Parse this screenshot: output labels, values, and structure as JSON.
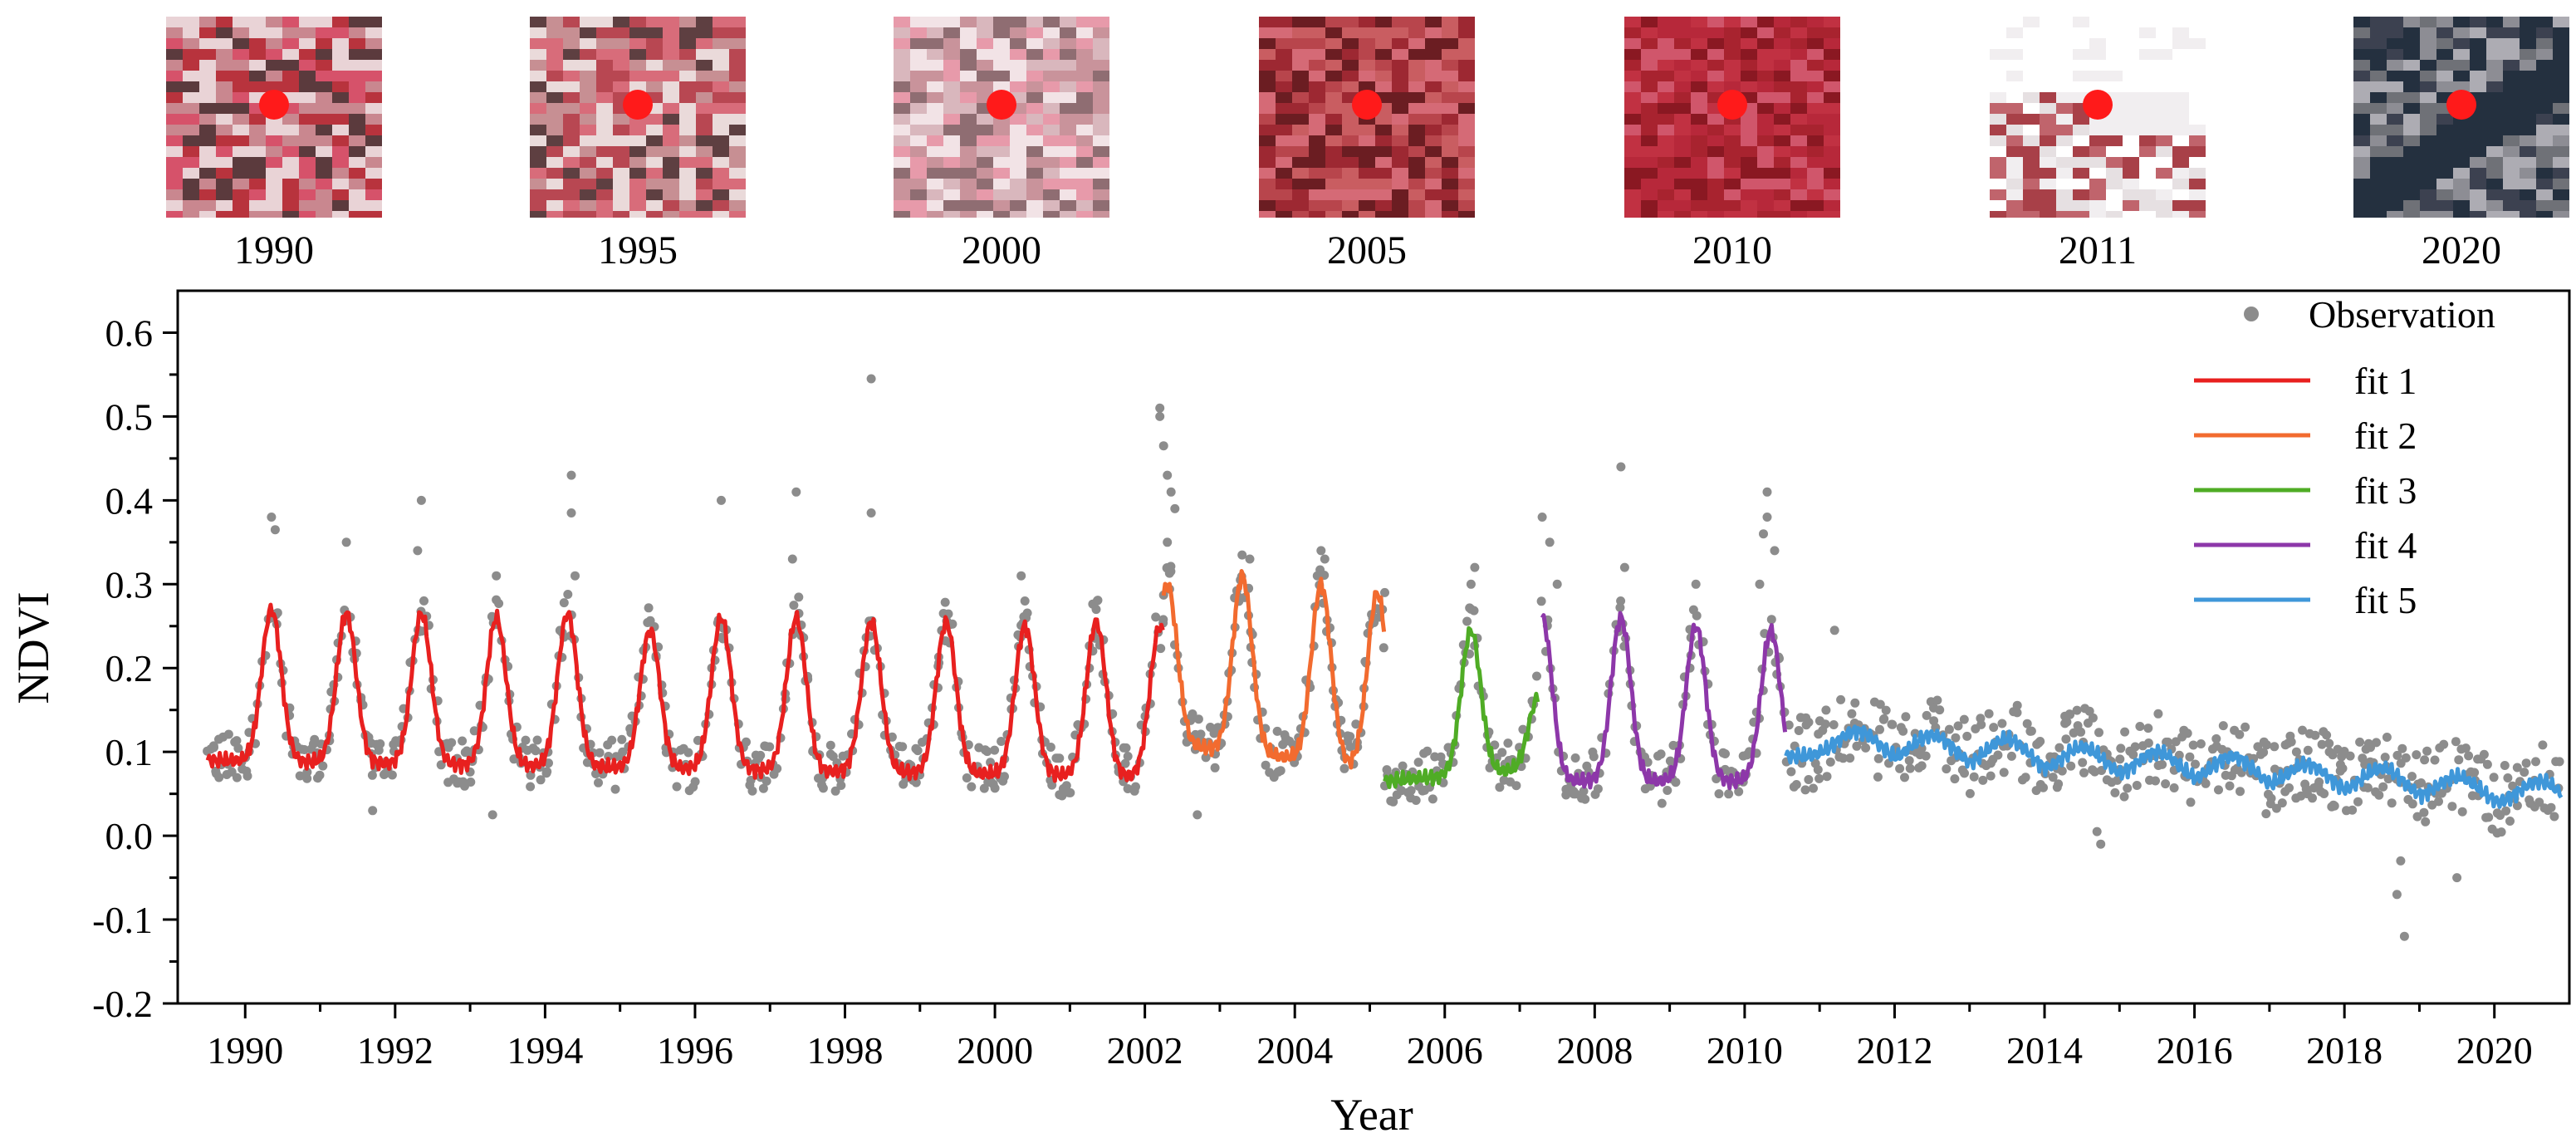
{
  "thumbnails": [
    {
      "year": "1990",
      "palette": [
        "#c9878f",
        "#b8333d",
        "#e9d3d6",
        "#5b3a3d",
        "#d6526a"
      ]
    },
    {
      "year": "1995",
      "palette": [
        "#c78f93",
        "#b84752",
        "#eadada",
        "#5e3f41",
        "#d86c7a"
      ]
    },
    {
      "year": "2000",
      "palette": [
        "#d9b7bd",
        "#c9939b",
        "#f2e3e6",
        "#8f6d72",
        "#e79aaa"
      ]
    },
    {
      "year": "2005",
      "palette": [
        "#9d2832",
        "#b8454c",
        "#d56a76",
        "#6b1d22",
        "#c95d61"
      ]
    },
    {
      "year": "2010",
      "palette": [
        "#a8232f",
        "#c13142",
        "#8a1822",
        "#d0566b",
        "#b7283a"
      ]
    },
    {
      "year": "2011",
      "palette": [
        "#ffffff",
        "#f1eef0",
        "#a84048",
        "#c0646c",
        "#e6e0e2"
      ]
    },
    {
      "year": "2020",
      "palette": [
        "#6f7177",
        "#8d8d94",
        "#3c4150",
        "#adacb3",
        "#24303f"
      ]
    }
  ],
  "marker_color": "#ff1a1a",
  "chart_data": {
    "type": "scatter",
    "title": "",
    "xlabel": "Year",
    "ylabel": "NDVI",
    "xlim": [
      1989.1,
      2021.0
    ],
    "ylim": [
      -0.2,
      0.65
    ],
    "xticks": [
      1990,
      1992,
      1994,
      1996,
      1998,
      2000,
      2002,
      2004,
      2006,
      2008,
      2010,
      2012,
      2014,
      2016,
      2018,
      2020
    ],
    "xtick_labels": [
      "1990",
      "1992",
      "1994",
      "1996",
      "1998",
      "2000",
      "2002",
      "2004",
      "2006",
      "2008",
      "2010",
      "2012",
      "2014",
      "2016",
      "2018",
      "2020"
    ],
    "yticks": [
      -0.2,
      -0.1,
      0.0,
      0.1,
      0.2,
      0.3,
      0.4,
      0.5,
      0.6
    ],
    "ytick_labels": [
      "-0.2",
      "-0.1",
      "0.0",
      "0.1",
      "0.2",
      "0.3",
      "0.4",
      "0.5",
      "0.6"
    ],
    "legend_position": "top-right",
    "observation": {
      "name": "Observation",
      "color": "#8c8c8c",
      "outliers": [
        [
          1990.35,
          0.38
        ],
        [
          1990.4,
          0.365
        ],
        [
          1991.35,
          0.35
        ],
        [
          1992.35,
          0.4
        ],
        [
          1992.3,
          0.34
        ],
        [
          1993.35,
          0.31
        ],
        [
          1994.35,
          0.43
        ],
        [
          1994.35,
          0.385
        ],
        [
          1994.4,
          0.31
        ],
        [
          1996.35,
          0.4
        ],
        [
          1997.35,
          0.41
        ],
        [
          1997.3,
          0.33
        ],
        [
          1998.35,
          0.545
        ],
        [
          1998.35,
          0.385
        ],
        [
          2000.35,
          0.31
        ],
        [
          2000.4,
          0.28
        ],
        [
          2001.35,
          0.27
        ],
        [
          2002.2,
          0.51
        ],
        [
          2002.2,
          0.5
        ],
        [
          2002.25,
          0.465
        ],
        [
          2002.3,
          0.43
        ],
        [
          2002.35,
          0.41
        ],
        [
          2002.4,
          0.39
        ],
        [
          2002.3,
          0.35
        ],
        [
          2003.4,
          0.33
        ],
        [
          2004.35,
          0.34
        ],
        [
          2004.4,
          0.33
        ],
        [
          2004.3,
          0.31
        ],
        [
          2005.2,
          0.29
        ],
        [
          2006.4,
          0.32
        ],
        [
          2006.35,
          0.3
        ],
        [
          2007.3,
          0.38
        ],
        [
          2007.4,
          0.35
        ],
        [
          2007.5,
          0.3
        ],
        [
          2008.35,
          0.44
        ],
        [
          2008.4,
          0.32
        ],
        [
          2009.35,
          0.3
        ],
        [
          2010.3,
          0.41
        ],
        [
          2010.3,
          0.38
        ],
        [
          2010.25,
          0.36
        ],
        [
          2010.4,
          0.34
        ],
        [
          2010.2,
          0.3
        ],
        [
          2011.2,
          0.245
        ],
        [
          2002.7,
          0.025
        ],
        [
          1993.3,
          0.025
        ],
        [
          1991.7,
          0.03
        ],
        [
          2018.7,
          -0.07
        ],
        [
          2018.8,
          -0.12
        ],
        [
          2018.75,
          -0.03
        ],
        [
          2019.5,
          -0.05
        ],
        [
          2014.75,
          -0.01
        ],
        [
          2014.7,
          0.005
        ]
      ]
    },
    "series": [
      {
        "name": "fit 1",
        "color": "#e8201f",
        "x_start": 1989.5,
        "x_end": 2002.25,
        "peaks": [
          [
            1990.35,
            0.27
          ],
          [
            1991.35,
            0.265
          ],
          [
            1992.35,
            0.265
          ],
          [
            1993.35,
            0.26
          ],
          [
            1994.3,
            0.265
          ],
          [
            1995.4,
            0.245
          ],
          [
            1996.35,
            0.26
          ],
          [
            1997.35,
            0.26
          ],
          [
            1998.35,
            0.255
          ],
          [
            1999.35,
            0.255
          ],
          [
            2000.4,
            0.25
          ],
          [
            2001.35,
            0.255
          ],
          [
            2002.2,
            0.25
          ]
        ],
        "base_start": 0.09,
        "base_end": 0.07
      },
      {
        "name": "fit 2",
        "color": "#f26b2f",
        "x_start": 2002.25,
        "x_end": 2005.2,
        "peaks": [
          [
            2002.3,
            0.3
          ],
          [
            2003.3,
            0.31
          ],
          [
            2004.35,
            0.3
          ],
          [
            2005.1,
            0.29
          ]
        ],
        "base_start": 0.11,
        "base_end": 0.08
      },
      {
        "name": "fit 3",
        "color": "#4fac25",
        "x_start": 2005.2,
        "x_end": 2007.25,
        "peaks": [
          [
            2006.35,
            0.245
          ],
          [
            2007.25,
            0.165
          ]
        ],
        "base_start": 0.065,
        "base_end": 0.08
      },
      {
        "name": "fit 4",
        "color": "#8d37a9",
        "x_start": 2007.3,
        "x_end": 2010.55,
        "peaks": [
          [
            2007.3,
            0.26
          ],
          [
            2008.35,
            0.26
          ],
          [
            2009.35,
            0.25
          ],
          [
            2010.35,
            0.245
          ]
        ],
        "base_start": 0.065,
        "base_end": 0.065
      },
      {
        "name": "fit 5",
        "color": "#3f97d9",
        "x_start": 2010.55,
        "x_end": 2020.9,
        "peaks": [
          [
            2011.5,
            0.125
          ],
          [
            2012.5,
            0.12
          ],
          [
            2013.5,
            0.115
          ],
          [
            2014.5,
            0.105
          ],
          [
            2015.5,
            0.1
          ],
          [
            2016.5,
            0.095
          ],
          [
            2017.5,
            0.085
          ],
          [
            2018.5,
            0.08
          ],
          [
            2019.5,
            0.07
          ],
          [
            2020.6,
            0.065
          ]
        ],
        "base_start": 0.095,
        "base_end": 0.03
      }
    ]
  }
}
